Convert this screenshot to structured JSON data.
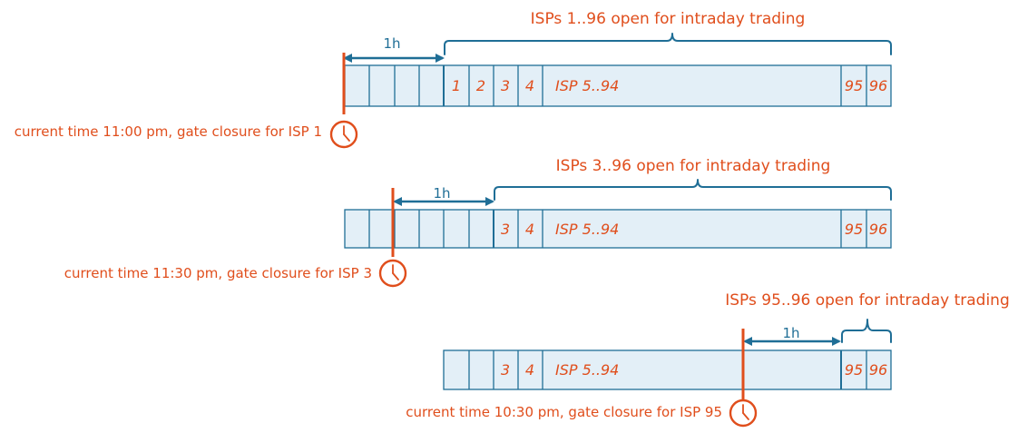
{
  "rows": [
    {
      "open_label": "ISPs 1..96 open for intraday trading",
      "gap_label": "1h",
      "cells": [
        "1",
        "2",
        "3",
        "4",
        "ISP 5..94",
        "95",
        "96"
      ],
      "gate_text": "current time 11:00 pm, gate closure for ISP 1",
      "clock_icon": "clock-icon"
    },
    {
      "open_label": "ISPs 3..96 open for intraday trading",
      "gap_label": "1h",
      "cells": [
        "3",
        "4",
        "ISP 5..94",
        "95",
        "96"
      ],
      "gate_text": "current time 11:30 pm, gate closure for ISP 3",
      "clock_icon": "clock-icon"
    },
    {
      "open_label": "ISPs 95..96 open for intraday trading",
      "gap_label": "1h",
      "cells": [
        "3",
        "4",
        "ISP 5..94",
        "95",
        "96"
      ],
      "gate_text": "current time 10:30 pm, gate closure for ISP 95",
      "clock_icon": "clock-icon"
    }
  ],
  "colors": {
    "marker": "#E04E1C",
    "line": "#1F6E96",
    "fill": "#E3EFF7"
  }
}
